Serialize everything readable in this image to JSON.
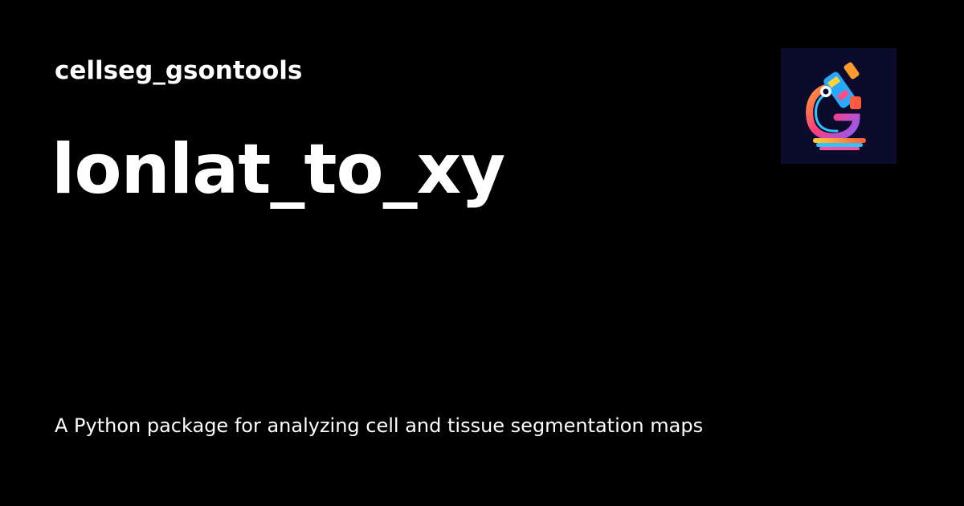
{
  "site": {
    "name": "cellseg_gsontools"
  },
  "page": {
    "title": "lonlat_to_xy",
    "description": "A Python package for analyzing cell and tissue segmentation maps"
  },
  "logo": {
    "icon": "microscope-icon",
    "background": "#0b0b2c"
  },
  "colors": {
    "background": "#000000",
    "text": "#ffffff"
  }
}
